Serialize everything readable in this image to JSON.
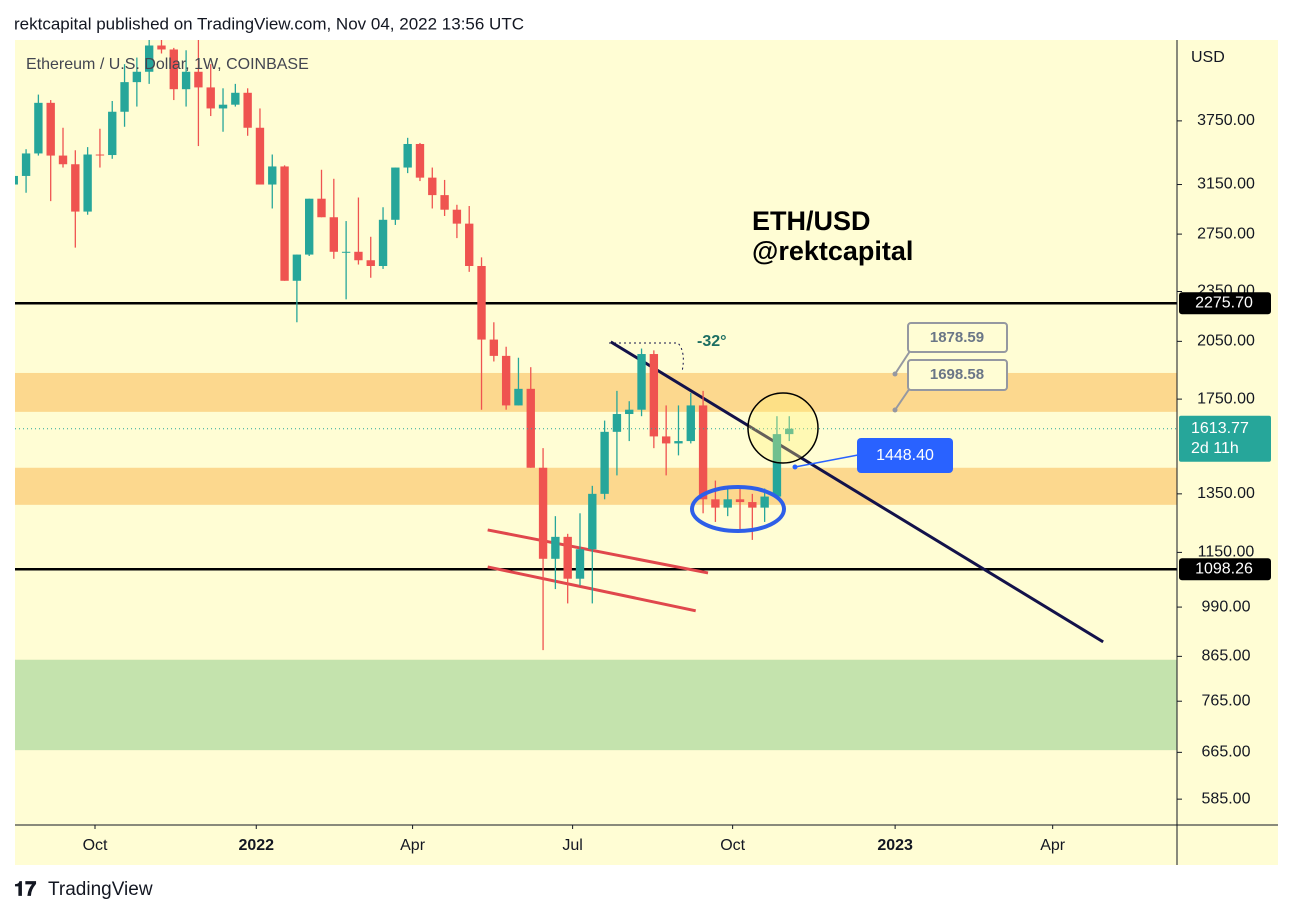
{
  "header": "rektcapital published on TradingView.com, Nov 04, 2022 13:56 UTC",
  "footer": "TradingView",
  "chart_data": {
    "type": "candlestick",
    "legend": "Ethereum / U.S. Dollar, 1W, COINBASE",
    "currency": "USD",
    "log_scale": true,
    "up_color": "#26a69a",
    "down_color": "#ef5350",
    "ylim": [
      545,
      4680
    ],
    "yticks": [
      {
        "value": 585,
        "label": "585.00"
      },
      {
        "value": 665,
        "label": "665.00"
      },
      {
        "value": 765,
        "label": "765.00"
      },
      {
        "value": 865,
        "label": "865.00"
      },
      {
        "value": 990,
        "label": "990.00"
      },
      {
        "value": 1150,
        "label": "1150.00"
      },
      {
        "value": 1350,
        "label": "1350.00"
      },
      {
        "value": 1750,
        "label": "1750.00"
      },
      {
        "value": 2050,
        "label": "2050.00"
      },
      {
        "value": 2350,
        "label": "2350.00"
      },
      {
        "value": 2750,
        "label": "2750.00"
      },
      {
        "value": 3150,
        "label": "3150.00"
      },
      {
        "value": 3750,
        "label": "3750.00"
      }
    ],
    "xlim": [
      0.1,
      94.5
    ],
    "xticks": [
      {
        "value": 6.6,
        "label": "Oct"
      },
      {
        "value": 19.7,
        "label": "2022"
      },
      {
        "value": 32.4,
        "label": "Apr"
      },
      {
        "value": 45.4,
        "label": "Jul"
      },
      {
        "value": 58.4,
        "label": "Oct"
      },
      {
        "value": 71.6,
        "label": "2023"
      },
      {
        "value": 84.4,
        "label": "Apr"
      }
    ],
    "candles": [
      {
        "open": 3150,
        "high": 3335,
        "low": 2950,
        "close": 3225
      },
      {
        "open": 3225,
        "high": 3470,
        "low": 3080,
        "close": 3430
      },
      {
        "open": 3430,
        "high": 4030,
        "low": 3410,
        "close": 3940
      },
      {
        "open": 3940,
        "high": 3970,
        "low": 3010,
        "close": 3410
      },
      {
        "open": 3410,
        "high": 3680,
        "low": 3300,
        "close": 3330
      },
      {
        "open": 3330,
        "high": 3460,
        "low": 2650,
        "close": 2925
      },
      {
        "open": 2925,
        "high": 3490,
        "low": 2900,
        "close": 3420
      },
      {
        "open": 3420,
        "high": 3670,
        "low": 3300,
        "close": 3415
      },
      {
        "open": 3415,
        "high": 3960,
        "low": 3380,
        "close": 3845
      },
      {
        "open": 3845,
        "high": 4380,
        "low": 3690,
        "close": 4170
      },
      {
        "open": 4170,
        "high": 4460,
        "low": 3900,
        "close": 4290
      },
      {
        "open": 4290,
        "high": 4780,
        "low": 4150,
        "close": 4610
      },
      {
        "open": 4610,
        "high": 4870,
        "low": 4510,
        "close": 4560
      },
      {
        "open": 4560,
        "high": 4580,
        "low": 3970,
        "close": 4090
      },
      {
        "open": 4090,
        "high": 4550,
        "low": 3900,
        "close": 4290
      },
      {
        "open": 4290,
        "high": 4780,
        "low": 3500,
        "close": 4110
      },
      {
        "open": 4110,
        "high": 4380,
        "low": 3800,
        "close": 3880
      },
      {
        "open": 3880,
        "high": 4100,
        "low": 3640,
        "close": 3920
      },
      {
        "open": 3920,
        "high": 4150,
        "low": 3900,
        "close": 4050
      },
      {
        "open": 4050,
        "high": 4100,
        "low": 3600,
        "close": 3680
      },
      {
        "open": 3680,
        "high": 3880,
        "low": 3150,
        "close": 3150
      },
      {
        "open": 3150,
        "high": 3420,
        "low": 2950,
        "close": 3310
      },
      {
        "open": 3310,
        "high": 3320,
        "low": 2420,
        "close": 2420
      },
      {
        "open": 2420,
        "high": 2600,
        "low": 2160,
        "close": 2600
      },
      {
        "open": 2600,
        "high": 3030,
        "low": 2590,
        "close": 3030
      },
      {
        "open": 3030,
        "high": 3280,
        "low": 2880,
        "close": 2880
      },
      {
        "open": 2880,
        "high": 3200,
        "low": 2570,
        "close": 2620
      },
      {
        "open": 2620,
        "high": 2850,
        "low": 2300,
        "close": 2620
      },
      {
        "open": 2620,
        "high": 3040,
        "low": 2530,
        "close": 2560
      },
      {
        "open": 2560,
        "high": 2730,
        "low": 2440,
        "close": 2520
      },
      {
        "open": 2520,
        "high": 2960,
        "low": 2500,
        "close": 2860
      },
      {
        "open": 2860,
        "high": 3300,
        "low": 2820,
        "close": 3300
      },
      {
        "open": 3300,
        "high": 3580,
        "low": 3250,
        "close": 3520
      },
      {
        "open": 3520,
        "high": 3530,
        "low": 3180,
        "close": 3210
      },
      {
        "open": 3210,
        "high": 3300,
        "low": 2950,
        "close": 3060
      },
      {
        "open": 3060,
        "high": 3190,
        "low": 2890,
        "close": 2940
      },
      {
        "open": 2940,
        "high": 2980,
        "low": 2720,
        "close": 2830
      },
      {
        "open": 2830,
        "high": 2970,
        "low": 2480,
        "close": 2520
      },
      {
        "open": 2520,
        "high": 2580,
        "low": 1700,
        "close": 2060
      },
      {
        "open": 2060,
        "high": 2160,
        "low": 1940,
        "close": 1970
      },
      {
        "open": 1970,
        "high": 2020,
        "low": 1700,
        "close": 1720
      },
      {
        "open": 1720,
        "high": 1960,
        "low": 1720,
        "close": 1800
      },
      {
        "open": 1800,
        "high": 1910,
        "low": 1450,
        "close": 1450
      },
      {
        "open": 1450,
        "high": 1530,
        "low": 880,
        "close": 1130
      },
      {
        "open": 1130,
        "high": 1270,
        "low": 1040,
        "close": 1200
      },
      {
        "open": 1200,
        "high": 1210,
        "low": 1000,
        "close": 1070
      },
      {
        "open": 1070,
        "high": 1280,
        "low": 1050,
        "close": 1160
      },
      {
        "open": 1160,
        "high": 1380,
        "low": 1000,
        "close": 1350
      },
      {
        "open": 1350,
        "high": 1650,
        "low": 1330,
        "close": 1600
      },
      {
        "open": 1600,
        "high": 1790,
        "low": 1420,
        "close": 1680
      },
      {
        "open": 1680,
        "high": 1740,
        "low": 1560,
        "close": 1700
      },
      {
        "open": 1700,
        "high": 2010,
        "low": 1670,
        "close": 1980
      },
      {
        "open": 1980,
        "high": 2000,
        "low": 1530,
        "close": 1580
      },
      {
        "open": 1580,
        "high": 1720,
        "low": 1420,
        "close": 1550
      },
      {
        "open": 1550,
        "high": 1720,
        "low": 1500,
        "close": 1560
      },
      {
        "open": 1560,
        "high": 1780,
        "low": 1550,
        "close": 1720
      },
      {
        "open": 1720,
        "high": 1790,
        "low": 1280,
        "close": 1330
      },
      {
        "open": 1330,
        "high": 1400,
        "low": 1250,
        "close": 1300
      },
      {
        "open": 1300,
        "high": 1380,
        "low": 1270,
        "close": 1330
      },
      {
        "open": 1330,
        "high": 1380,
        "low": 1220,
        "close": 1320
      },
      {
        "open": 1320,
        "high": 1350,
        "low": 1190,
        "close": 1300
      },
      {
        "open": 1300,
        "high": 1370,
        "low": 1250,
        "close": 1340
      },
      {
        "open": 1340,
        "high": 1670,
        "low": 1340,
        "close": 1590
      },
      {
        "open": 1590,
        "high": 1670,
        "low": 1560,
        "close": 1613.77
      }
    ],
    "countdown": "2d 11h",
    "levels": [
      {
        "value": 2275.7,
        "label": "2275.70"
      },
      {
        "value": 1098.26,
        "label": "1098.26"
      }
    ],
    "zones": [
      {
        "low": 1690,
        "high": 1880,
        "color": "#fcd88e"
      },
      {
        "low": 1310,
        "high": 1450,
        "color": "#fcd88e"
      },
      {
        "low": 669,
        "high": 857,
        "color": "#c4e3ad"
      }
    ],
    "trendlines": [
      {
        "x": [
          48.5,
          88.5
        ],
        "y": [
          2047,
          900
        ],
        "color": "#13124a"
      },
      {
        "x": [
          38.5,
          56.4
        ],
        "y": [
          1223,
          1087
        ],
        "color": "#e0474c"
      },
      {
        "x": [
          38.5,
          55.4
        ],
        "y": [
          1105,
          980
        ],
        "color": "#e0474c"
      }
    ],
    "callouts": [
      {
        "value": 1878.59,
        "label": "1878.59"
      },
      {
        "value": 1698.58,
        "label": "1698.58"
      },
      {
        "value": 1448.4,
        "label": "1448.40"
      }
    ],
    "annotations": [
      "ETH/USD",
      "@rektcapital",
      "-32°"
    ]
  }
}
